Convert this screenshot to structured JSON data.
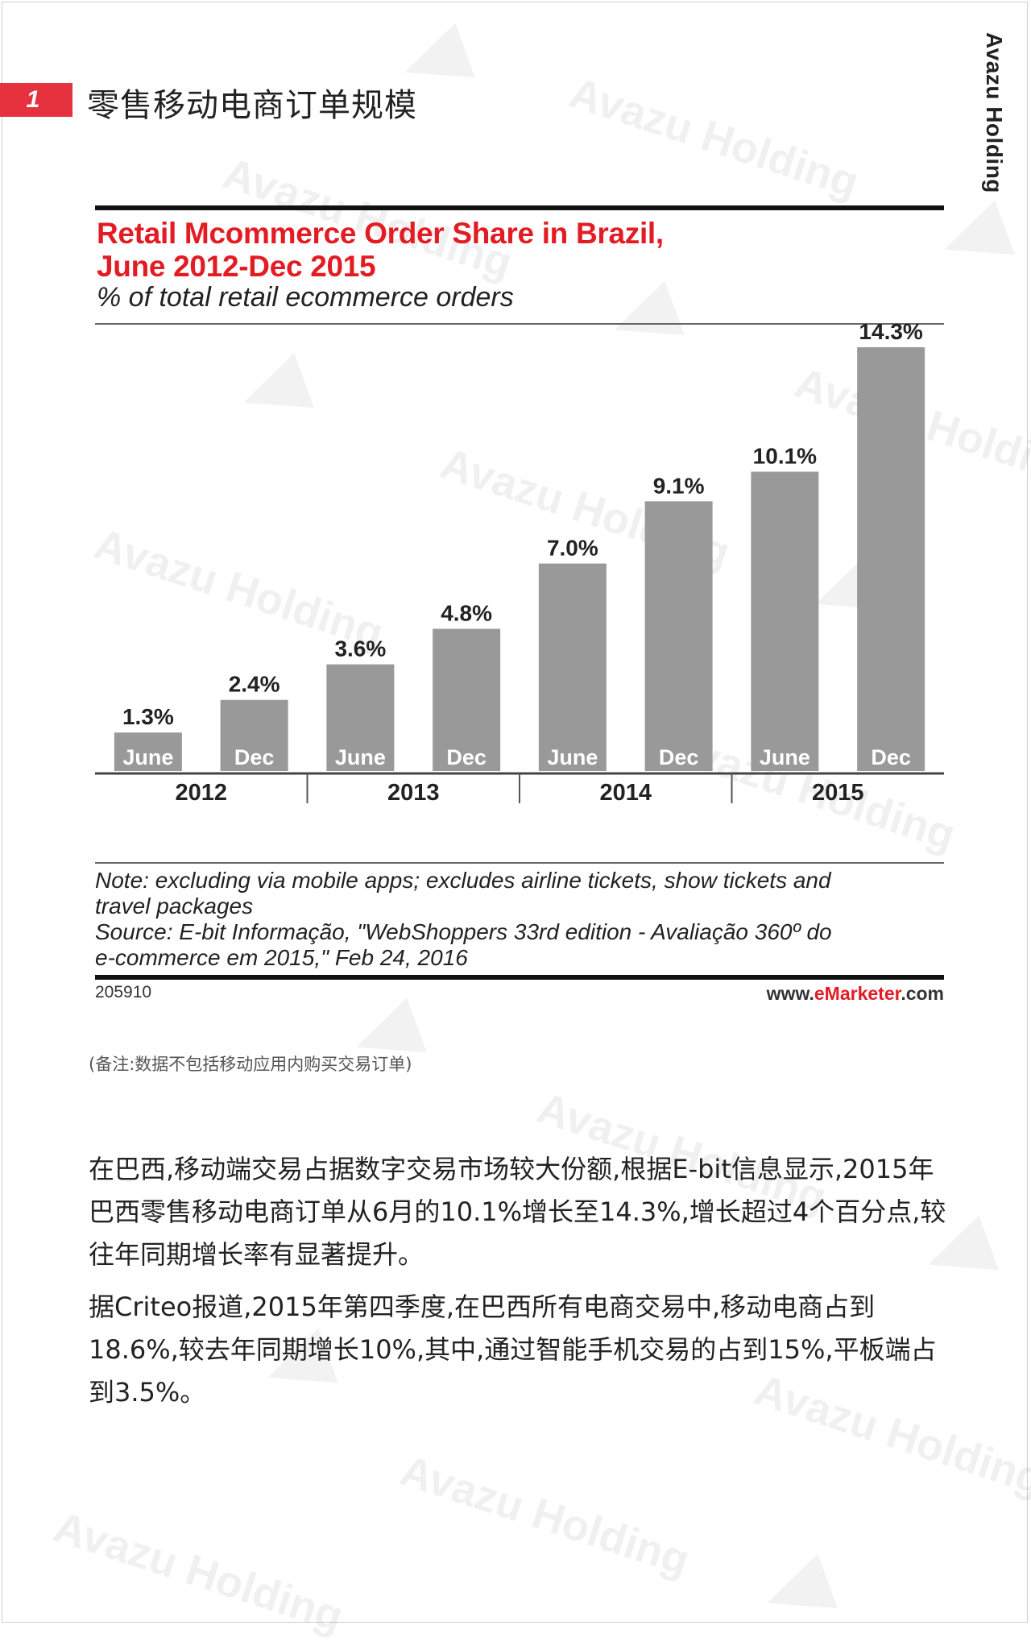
{
  "brand": "Avazu Holding",
  "section": {
    "number": "1",
    "title": "零售移动电商订单规模"
  },
  "watermark": "Avazu Holding",
  "chart_data": {
    "type": "bar",
    "title_line1": "Retail Mcommerce Order Share in Brazil,",
    "title_line2": "June 2012-Dec 2015",
    "subtitle": "% of total retail ecommerce orders",
    "categories": [
      "June",
      "Dec",
      "June",
      "Dec",
      "June",
      "Dec",
      "June",
      "Dec"
    ],
    "years": [
      "2012",
      "2013",
      "2014",
      "2015"
    ],
    "values": [
      1.3,
      2.4,
      3.6,
      4.8,
      7.0,
      9.1,
      10.1,
      14.3
    ],
    "data_labels": [
      "1.3%",
      "2.4%",
      "3.6%",
      "4.8%",
      "7.0%",
      "9.1%",
      "10.1%",
      "14.3%"
    ],
    "ylim": [
      0,
      14.3
    ],
    "bar_color": "#999999",
    "grid": false,
    "note_line1": "Note: excluding via mobile apps; excludes airline tickets, show tickets and",
    "note_line2": "travel packages",
    "source_line1": "Source: E-bit Informação, \"WebShoppers 33rd edition - Avaliação 360º do",
    "source_line2": "e-commerce em 2015,\" Feb 24, 2016",
    "chart_id": "205910",
    "credit_prefix": "www.",
    "credit_brand": "eMarketer",
    "credit_suffix": ".com"
  },
  "remark": "(备注:数据不包括移动应用内购买交易订单)",
  "paragraphs": [
    "在巴西,移动端交易占据数字交易市场较大份额,根据E-bit信息显示,2015年巴西零售移动电商订单从6月的10.1%增长至14.3%,增长超过4个百分点,较往年同期增长率有显著提升。",
    "据Criteo报道,2015年第四季度,在巴西所有电商交易中,移动电商占到18.6%,较去年同期增长10%,其中,通过智能手机交易的占到15%,平板端占到3.5%。"
  ],
  "colors": {
    "accent": "#e5323e",
    "title_red": "#e31b23"
  }
}
